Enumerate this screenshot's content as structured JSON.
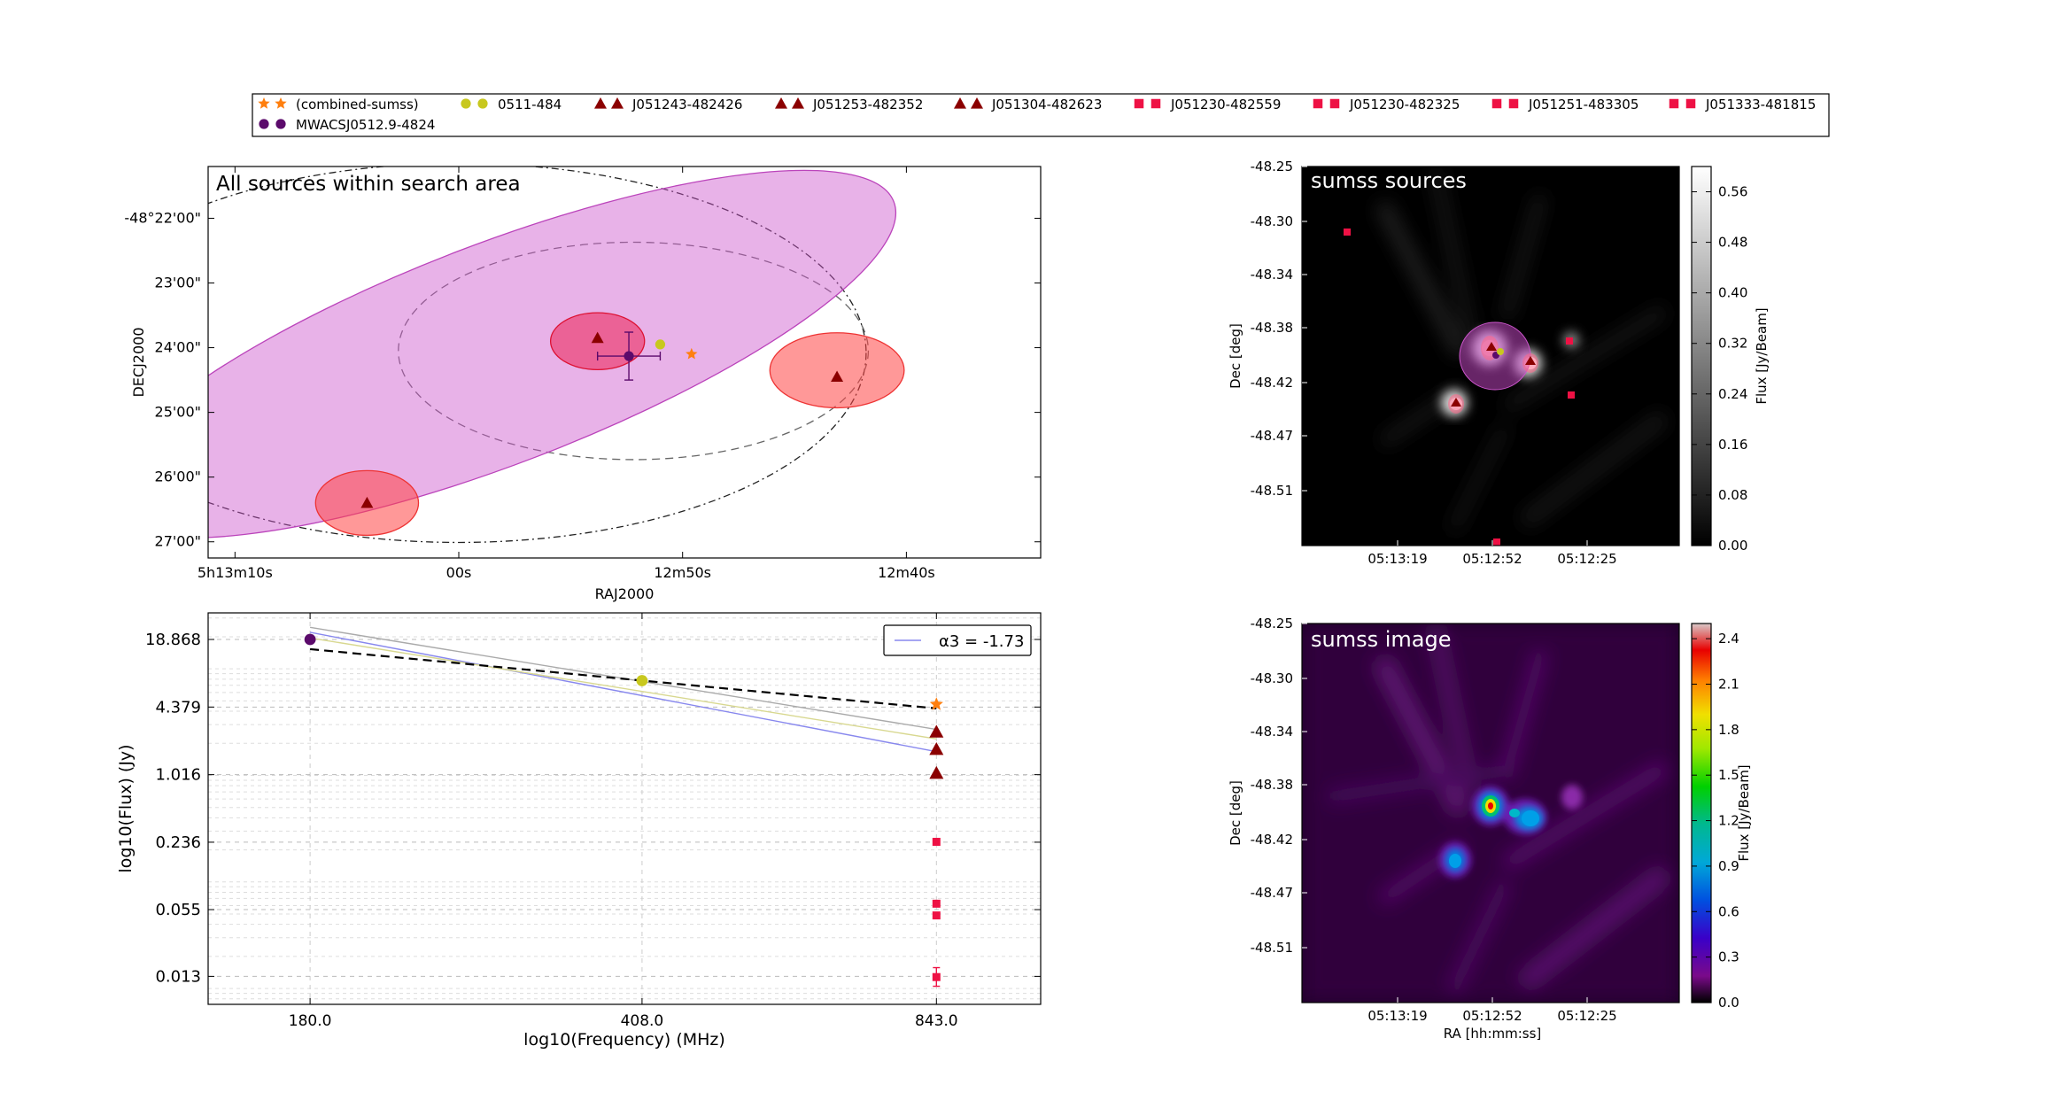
{
  "legend": {
    "entries": [
      {
        "label": "(combined-sumss)",
        "marker": "star",
        "color": "#ff7f0e"
      },
      {
        "label": "0511-484",
        "marker": "circle",
        "color": "#c8c81e"
      },
      {
        "label": "J051243-482426",
        "marker": "triangle",
        "color": "#8b0000"
      },
      {
        "label": "J051253-482352",
        "marker": "triangle",
        "color": "#8b0000"
      },
      {
        "label": "J051304-482623",
        "marker": "triangle",
        "color": "#8b0000"
      },
      {
        "label": "J051230-482559",
        "marker": "square",
        "color": "#ee1144"
      },
      {
        "label": "J051230-482325",
        "marker": "square",
        "color": "#ee1144"
      },
      {
        "label": "J051251-483305",
        "marker": "square",
        "color": "#ee1144"
      },
      {
        "label": "J051333-481815",
        "marker": "square",
        "color": "#ee1144"
      },
      {
        "label": "MWACSJ0512.9-4824",
        "marker": "circle",
        "color": "#5b0a6b"
      }
    ]
  },
  "chart_data": [
    {
      "id": "search-area",
      "type": "scatter",
      "title": "All sources within search area",
      "xlabel": "RAJ2000",
      "ylabel": "DECJ2000",
      "x_ticks": [
        {
          "v": 0,
          "label": "5h13m10s"
        },
        {
          "v": 1,
          "label": "00s"
        },
        {
          "v": 2,
          "label": "12m50s"
        },
        {
          "v": 3,
          "label": "12m40s"
        }
      ],
      "y_ticks": [
        {
          "v": 22,
          "label": "-48°22'00\""
        },
        {
          "v": 23,
          "label": "23'00\""
        },
        {
          "v": 24,
          "label": "24'00\""
        },
        {
          "v": 25,
          "label": "25'00\""
        },
        {
          "v": 26,
          "label": "26'00\""
        },
        {
          "v": 27,
          "label": "27'00\""
        }
      ],
      "xlim": [
        -0.12,
        3.6
      ],
      "ylim": [
        21.2,
        27.25
      ],
      "ellipses": [
        {
          "cx": 1.0,
          "cy": 24.08,
          "rx": 1.82,
          "ry": 2.93,
          "angle": 0,
          "style": "dashdot",
          "fill": "none",
          "stroke": "#222222"
        },
        {
          "cx": 1.78,
          "cy": 24.05,
          "rx": 1.05,
          "ry": 1.68,
          "angle": 0,
          "style": "dashed",
          "fill": "none",
          "stroke": "#666666"
        },
        {
          "cx": 1.17,
          "cy": 24.1,
          "rx": 1.9,
          "ry": 1.7,
          "angle": -21,
          "style": "solid",
          "fill": "#cc55cc",
          "stroke": "#bb44bb",
          "opacity": 0.45
        },
        {
          "cx": 1.62,
          "cy": 23.9,
          "rx": 0.21,
          "ry": 0.44,
          "angle": 0,
          "style": "solid",
          "fill": "#ee1144",
          "stroke": "#dd1133",
          "opacity": 0.5
        },
        {
          "cx": 2.69,
          "cy": 24.35,
          "rx": 0.3,
          "ry": 0.58,
          "angle": 0,
          "style": "solid",
          "fill": "#ff4444",
          "stroke": "#ee3333",
          "opacity": 0.55
        },
        {
          "cx": 0.59,
          "cy": 26.4,
          "rx": 0.23,
          "ry": 0.5,
          "angle": 0,
          "style": "solid",
          "fill": "#ff4444",
          "stroke": "#ee3333",
          "opacity": 0.55
        }
      ],
      "points": [
        {
          "x": 1.62,
          "y": 23.85,
          "marker": "triangle",
          "color": "#8b0000"
        },
        {
          "x": 2.69,
          "y": 24.45,
          "marker": "triangle",
          "color": "#8b0000"
        },
        {
          "x": 0.59,
          "y": 26.4,
          "marker": "triangle",
          "color": "#8b0000"
        },
        {
          "x": 1.76,
          "y": 24.13,
          "marker": "circle",
          "color": "#5b0a6b",
          "xerr": 0.14,
          "yerr": 0.37
        },
        {
          "x": 1.9,
          "y": 23.95,
          "marker": "circle",
          "color": "#c8c81e"
        },
        {
          "x": 2.04,
          "y": 24.1,
          "marker": "star",
          "color": "#ff7f0e"
        }
      ]
    },
    {
      "id": "spectrum",
      "type": "line",
      "title": "",
      "xlabel": "log10(Frequency) (MHz)",
      "ylabel": "log10(Flux) (Jy)",
      "x_ticks": [
        180.0,
        408.0,
        843.0
      ],
      "x_tick_labels": [
        "180.0",
        "408.0",
        "843.0"
      ],
      "y_ticks": [
        18.868,
        4.379,
        1.016,
        0.236,
        0.055,
        0.013
      ],
      "y_tick_labels": [
        "18.868",
        "4.379",
        "1.016",
        "0.236",
        "0.055",
        "0.013"
      ],
      "xlim": [
        140,
        1090
      ],
      "ylim": [
        0.0071,
        33.5
      ],
      "legend_entry": "α3 = -1.73",
      "legend_position": "top-right",
      "fit_lines": [
        {
          "x": [
            180,
            843
          ],
          "y": [
            22.0,
            1.67
          ],
          "color": "#8888ee",
          "style": "solid"
        },
        {
          "x": [
            180,
            843
          ],
          "y": [
            19.5,
            2.2
          ],
          "color": "#d8d890",
          "style": "solid"
        },
        {
          "x": [
            180,
            843
          ],
          "y": [
            24.5,
            2.7
          ],
          "color": "#aaaaaa",
          "style": "solid"
        },
        {
          "x": [
            180,
            843
          ],
          "y": [
            15.3,
            4.25
          ],
          "color": "#000000",
          "style": "dashed"
        }
      ],
      "points": [
        {
          "x": 180,
          "y": 18.868,
          "marker": "circle",
          "color": "#5b0a6b"
        },
        {
          "x": 408,
          "y": 7.75,
          "marker": "circle",
          "color": "#c8c81e"
        },
        {
          "x": 843,
          "y": 4.65,
          "marker": "star",
          "color": "#ff7f0e"
        },
        {
          "x": 843,
          "y": 2.56,
          "marker": "triangle",
          "color": "#8b0000"
        },
        {
          "x": 843,
          "y": 1.76,
          "marker": "triangle",
          "color": "#8b0000"
        },
        {
          "x": 843,
          "y": 1.05,
          "marker": "triangle",
          "color": "#8b0000"
        },
        {
          "x": 843,
          "y": 0.238,
          "marker": "square",
          "color": "#ee1144"
        },
        {
          "x": 843,
          "y": 0.0625,
          "marker": "square",
          "color": "#ee1144"
        },
        {
          "x": 843,
          "y": 0.0485,
          "marker": "square",
          "color": "#ee1144"
        },
        {
          "x": 843,
          "y": 0.0128,
          "marker": "square",
          "color": "#ee1144",
          "yerr": [
            0.0105,
            0.0157
          ]
        }
      ]
    },
    {
      "id": "sumss-sources",
      "type": "heatmap",
      "title": "sumss sources",
      "xlabel": "",
      "ylabel": "Dec [deg]",
      "colorbar_label": "Flux [Jy/Beam]",
      "colormap": "gray",
      "x_tick_labels": [
        "05:13:19",
        "05:12:52",
        "05:12:25"
      ],
      "y_tick_labels": [
        "-48.25",
        "-48.30",
        "-48.34",
        "-48.38",
        "-48.42",
        "-48.47",
        "-48.51"
      ],
      "colorbar_ticks": [
        "0.56",
        "0.48",
        "0.40",
        "0.32",
        "0.24",
        "0.16",
        "0.08",
        "0.00"
      ],
      "vrange": [
        0,
        0.6
      ]
    },
    {
      "id": "sumss-image",
      "type": "heatmap",
      "title": "sumss image",
      "xlabel": "RA [hh:mm:ss]",
      "ylabel": "Dec [deg]",
      "colorbar_label": "Flux [Jy/Beam]",
      "colormap": "spectral",
      "x_tick_labels": [
        "05:13:19",
        "05:12:52",
        "05:12:25"
      ],
      "y_tick_labels": [
        "-48.25",
        "-48.30",
        "-48.34",
        "-48.38",
        "-48.42",
        "-48.47",
        "-48.51"
      ],
      "colorbar_ticks": [
        "2.4",
        "2.1",
        "1.8",
        "1.5",
        "1.2",
        "0.9",
        "0.6",
        "0.3",
        "0.0"
      ],
      "vrange": [
        0,
        2.5
      ]
    }
  ]
}
